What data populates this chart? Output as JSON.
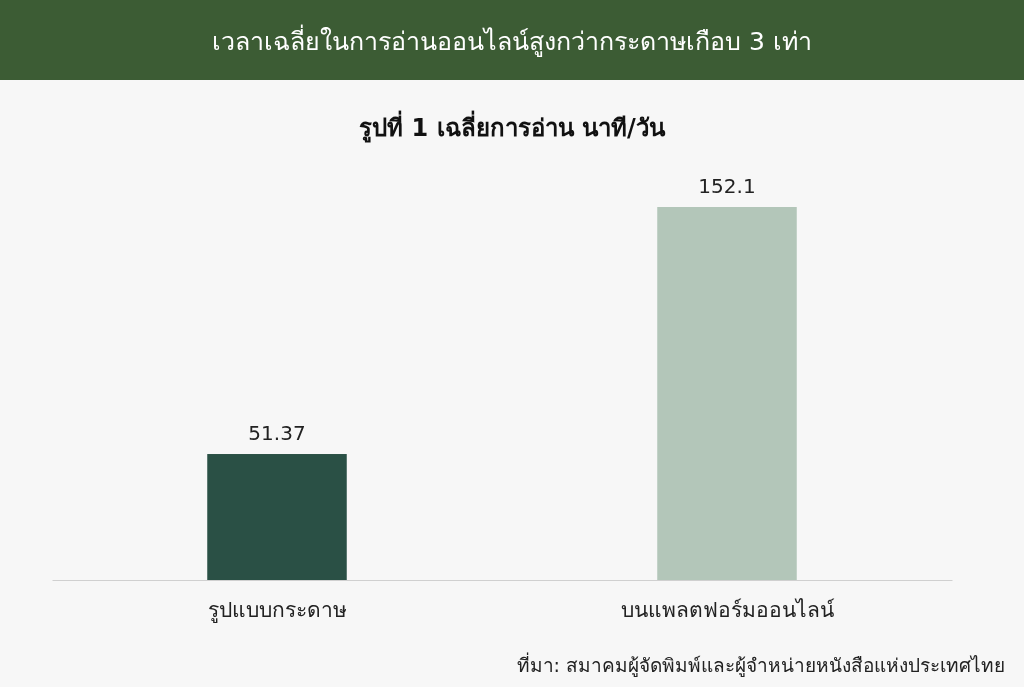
{
  "chart_data": {
    "type": "bar",
    "title": "เวลาเฉลี่ยในการอ่านออนไลน์สูงกว่ากระดาษเกือบ 3 เท่า",
    "subtitle": "รูปที่ 1 เฉลี่ยการอ่าน นาที/วัน",
    "categories": [
      "รูปแบบกระดาษ",
      "บนแพลตฟอร์มออนไลน์"
    ],
    "values": [
      51.37,
      152.1
    ],
    "colors": [
      "#2a5045",
      "#b3c6b9"
    ],
    "data_labels": true,
    "annotations": [
      "ที่มา:  สมาคมผู้จัดพิมพ์และผู้จำหน่ายหนังสือแห่งประเทศไทย"
    ]
  }
}
